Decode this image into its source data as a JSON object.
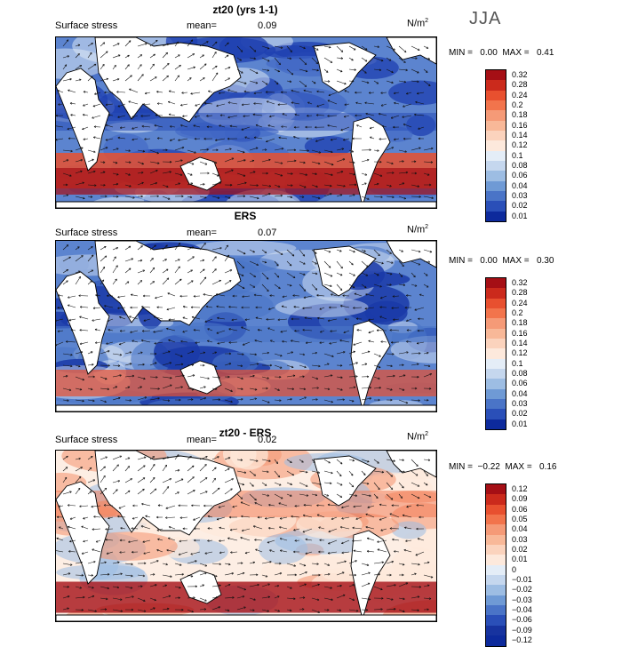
{
  "season": "JJA",
  "panels": [
    {
      "title": "zt20 (yrs 1-1)",
      "subtitle": "Surface stress",
      "mean_label": "mean=",
      "mean_value": "0.09",
      "units": "N/m",
      "units_sup": "2",
      "min_label": "MIN =",
      "min_value": "0.00",
      "max_label": "MAX =",
      "max_value": "0.41",
      "colorbar_labels": [
        "0.32",
        "0.28",
        "0.24",
        "0.2",
        "0.18",
        "0.16",
        "0.14",
        "0.12",
        "0.1",
        "0.08",
        "0.06",
        "0.04",
        "0.03",
        "0.02",
        "0.01"
      ],
      "colorbar_colors": [
        "#a50f15",
        "#cb2a1c",
        "#e8502f",
        "#f2744c",
        "#f59a77",
        "#f8b898",
        "#fbd3bd",
        "#fde9dc",
        "#e4edf7",
        "#c5d7ee",
        "#9dbde3",
        "#6f9ad5",
        "#4a74c7",
        "#2a4fb8",
        "#0d2a9c"
      ]
    },
    {
      "title": "ERS",
      "subtitle": "Surface stress",
      "mean_label": "mean=",
      "mean_value": "0.07",
      "units": "N/m",
      "units_sup": "2",
      "min_label": "MIN =",
      "min_value": "0.00",
      "max_label": "MAX =",
      "max_value": "0.30",
      "colorbar_labels": [
        "0.32",
        "0.28",
        "0.24",
        "0.2",
        "0.18",
        "0.16",
        "0.14",
        "0.12",
        "0.1",
        "0.08",
        "0.06",
        "0.04",
        "0.03",
        "0.02",
        "0.01"
      ],
      "colorbar_colors": [
        "#a50f15",
        "#cb2a1c",
        "#e8502f",
        "#f2744c",
        "#f59a77",
        "#f8b898",
        "#fbd3bd",
        "#fde9dc",
        "#e4edf7",
        "#c5d7ee",
        "#9dbde3",
        "#6f9ad5",
        "#4a74c7",
        "#2a4fb8",
        "#0d2a9c"
      ]
    },
    {
      "title": "zt20 - ERS",
      "subtitle": "Surface stress",
      "mean_label": "mean=",
      "mean_value": "0.02",
      "units": "N/m",
      "units_sup": "2",
      "min_label": "MIN =",
      "min_value": "−0.22",
      "max_label": "MAX =",
      "max_value": "0.16",
      "colorbar_labels": [
        "0.12",
        "0.09",
        "0.06",
        "0.05",
        "0.04",
        "0.03",
        "0.02",
        "0.01",
        "0",
        "−0.01",
        "−0.02",
        "−0.03",
        "−0.04",
        "−0.06",
        "−0.09",
        "−0.12"
      ],
      "colorbar_colors": [
        "#a50f15",
        "#cb2a1c",
        "#e8502f",
        "#f2744c",
        "#f59a77",
        "#f8b898",
        "#fbd3bd",
        "#fde9dc",
        "#e4edf7",
        "#c5d7ee",
        "#9dbde3",
        "#6f9ad5",
        "#4a74c7",
        "#2a4fb8",
        "#17339f",
        "#0d2a9c"
      ]
    }
  ]
}
